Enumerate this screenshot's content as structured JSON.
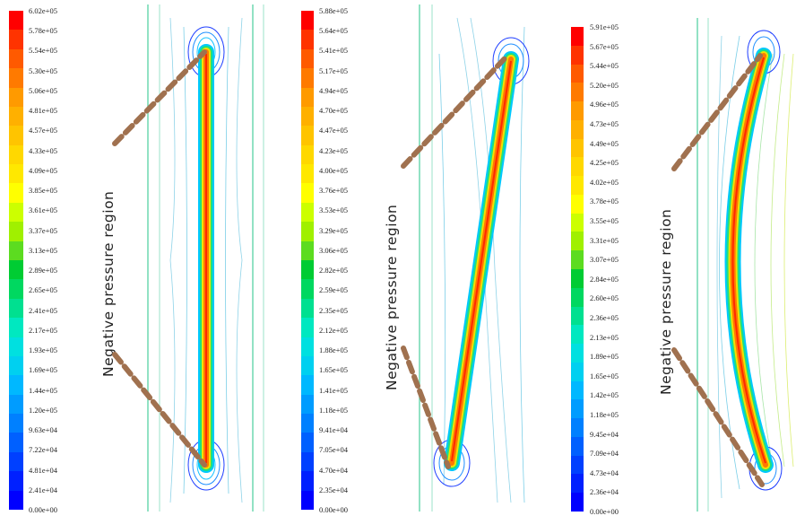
{
  "panels": [
    {
      "id": "vertical",
      "annotation": "Negative pressure region",
      "colorbar_labels": [
        "6.02e+05",
        "5.78e+05",
        "5.54e+05",
        "5.30e+05",
        "5.06e+05",
        "4.81e+05",
        "4.57e+05",
        "4.33e+05",
        "4.09e+05",
        "3.85e+05",
        "3.61e+05",
        "3.37e+05",
        "3.13e+05",
        "2.89e+05",
        "2.65e+05",
        "2.41e+05",
        "2.17e+05",
        "1.93e+05",
        "1.69e+05",
        "1.44e+05",
        "1.20e+05",
        "9.63e+04",
        "7.22e+04",
        "4.81e+04",
        "2.41e+04",
        "0.00e+00"
      ]
    },
    {
      "id": "inclined",
      "annotation": "Negative pressure region",
      "colorbar_labels": [
        "5.88e+05",
        "5.64e+05",
        "5.41e+05",
        "5.17e+05",
        "4.94e+05",
        "4.70e+05",
        "4.47e+05",
        "4.23e+05",
        "4.00e+05",
        "3.76e+05",
        "3.53e+05",
        "3.29e+05",
        "3.06e+05",
        "2.82e+05",
        "2.59e+05",
        "2.35e+05",
        "2.12e+05",
        "1.88e+05",
        "1.65e+05",
        "1.41e+05",
        "1.18e+05",
        "9.41e+04",
        "7.05e+04",
        "4.70e+04",
        "2.35e+04",
        "0.00e+00"
      ]
    },
    {
      "id": "curved",
      "annotation": "Negative pressure region",
      "colorbar_labels": [
        "5.91e+05",
        "5.67e+05",
        "5.44e+05",
        "5.20e+05",
        "4.96e+05",
        "4.73e+05",
        "4.49e+05",
        "4.25e+05",
        "4.02e+05",
        "3.78e+05",
        "3.55e+05",
        "3.31e+05",
        "3.07e+05",
        "2.84e+05",
        "2.60e+05",
        "2.36e+05",
        "2.13e+05",
        "1.89e+05",
        "1.65e+05",
        "1.42e+05",
        "1.18e+05",
        "9.45e+04",
        "7.09e+04",
        "4.73e+04",
        "2.36e+04",
        "0.00e+00"
      ]
    }
  ],
  "colormap": [
    "#ff0000",
    "#ff3300",
    "#ff5a00",
    "#ff7a00",
    "#ff9a00",
    "#ffb000",
    "#ffc400",
    "#ffd800",
    "#ffe800",
    "#ffff00",
    "#ccff00",
    "#a0f000",
    "#5cdc20",
    "#00cc33",
    "#00d860",
    "#00e090",
    "#00e8c0",
    "#00e0e0",
    "#00d0f0",
    "#00b8ff",
    "#009cff",
    "#0080ff",
    "#0060ff",
    "#0040ff",
    "#0020ff",
    "#0000ff"
  ],
  "line_color": "#a0714f"
}
